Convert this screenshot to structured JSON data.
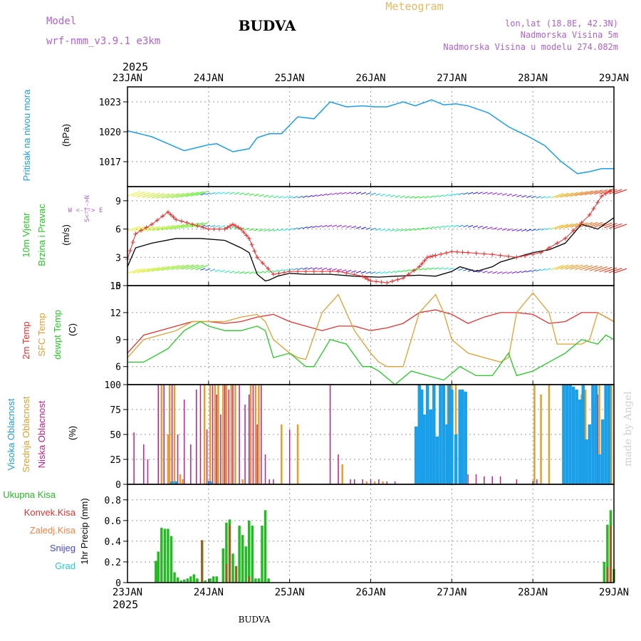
{
  "header": {
    "model_label": "Model",
    "model_name": "wrf-nmm_v3.9.1 e3km",
    "station": "BUDVA",
    "title": "Meteogram",
    "lonlat": "lon,lat (18.8E, 42.3N)",
    "elevation": "Nadmorska Visina 5m",
    "model_elevation": "Nadmorska Visina u modelu 274.082m",
    "year": "2025",
    "footer_station": "BUDVA",
    "credit": "made by Angel"
  },
  "colors": {
    "pressure": "#1aa0e8",
    "wind_speed": "#000000",
    "gust": "#e83030",
    "temp2m": "#e83030",
    "sfc_temp": "#e0a030",
    "dewpt": "#22cc22",
    "high_cloud": "#1aa0e8",
    "mid_cloud": "#e0a030",
    "low_cloud": "#c0208c",
    "total_precip": "#22bb22",
    "conv_precip": "#e83030",
    "frz_precip": "#ff8040",
    "snow": "#4444dd",
    "hail": "#22cccc",
    "model_label": "#b060d0",
    "title": "#e8b860"
  },
  "time_axis": {
    "labels": [
      "23JAN",
      "24JAN",
      "25JAN",
      "26JAN",
      "27JAN",
      "28JAN",
      "29JAN"
    ]
  },
  "chart_data": [
    {
      "type": "line",
      "name": "pressure",
      "ylabel_main": "Pritisak na nivou mora",
      "ylabel_unit": "(hPa)",
      "ylim": [
        1014.5,
        1024.5
      ],
      "yticks": [
        1017,
        1020,
        1023
      ],
      "x": [
        0,
        0.1,
        0.2,
        0.3,
        0.5,
        0.7,
        0.9,
        1.0,
        1.1,
        1.3,
        1.5,
        1.6,
        1.75,
        1.9,
        2.1,
        2.3,
        2.5,
        2.7,
        2.9,
        3.05,
        3.2,
        3.4,
        3.55,
        3.75,
        3.9,
        4.05,
        4.2,
        4.45,
        4.7,
        4.85,
        4.95,
        5.15,
        5.35,
        5.55,
        5.7,
        5.85,
        6.0
      ],
      "values": [
        1020.1,
        1019.9,
        1019.7,
        1019.5,
        1018.8,
        1018.1,
        1018.5,
        1018.7,
        1018.8,
        1018.0,
        1018.3,
        1019.4,
        1019.8,
        1019.8,
        1021.5,
        1021.3,
        1023.0,
        1022.5,
        1022.6,
        1022.5,
        1022.5,
        1023.0,
        1022.6,
        1023.2,
        1022.7,
        1022.8,
        1022.6,
        1021.9,
        1020.5,
        1019.9,
        1019.5,
        1018.6,
        1017.0,
        1015.8,
        1016.0,
        1016.3,
        1016.3
      ]
    },
    {
      "type": "line",
      "name": "wind",
      "ylabel_main": "10m Vjetar",
      "ylabel_sub": "Brzina i Pravac",
      "ylabel_unit": "(m/s)",
      "compass": "W <-|-> E",
      "compass_ns": "S<-|->N",
      "ylim": [
        0,
        10.5
      ],
      "yticks": [
        0,
        3,
        6,
        9
      ],
      "series": [
        {
          "name": "10m wind speed",
          "x": [
            0,
            0.1,
            0.3,
            0.6,
            0.9,
            1.2,
            1.4,
            1.5,
            1.6,
            1.7,
            1.75,
            1.85,
            2.0,
            2.2,
            2.5,
            2.8,
            3.1,
            3.3,
            3.6,
            3.8,
            4.0,
            4.1,
            4.3,
            4.5,
            4.6,
            4.8,
            5.0,
            5.2,
            5.4,
            5.6,
            5.8,
            6.0
          ],
          "values": [
            2.0,
            4.0,
            4.5,
            5.0,
            5.0,
            4.8,
            4.0,
            3.5,
            1.2,
            0.5,
            0.6,
            1.0,
            1.3,
            1.2,
            1.2,
            1.0,
            0.9,
            1.0,
            1.1,
            1.0,
            1.5,
            2.0,
            1.5,
            2.0,
            2.5,
            3.0,
            3.5,
            3.8,
            4.5,
            6.5,
            6.0,
            7.2
          ]
        },
        {
          "name": "gust",
          "x": [
            0,
            0.1,
            0.3,
            0.5,
            0.6,
            0.8,
            1.0,
            1.2,
            1.3,
            1.4,
            1.5,
            1.6,
            1.8,
            2.0,
            2.3,
            2.6,
            2.9,
            3.0,
            3.2,
            3.4,
            3.6,
            3.7,
            3.8,
            4.0,
            4.2,
            4.5,
            4.8,
            5.1,
            5.4,
            5.7,
            5.85,
            6.0
          ],
          "values": [
            2.8,
            5.5,
            6.5,
            7.8,
            7.0,
            6.5,
            6.0,
            6.0,
            6.5,
            6.0,
            5.0,
            3.0,
            1.2,
            1.5,
            1.5,
            1.5,
            1.0,
            0.5,
            0.3,
            0.8,
            2.0,
            3.0,
            3.2,
            3.6,
            3.5,
            3.3,
            3.0,
            3.5,
            5.0,
            7.5,
            9.5,
            10.3
          ]
        }
      ]
    },
    {
      "type": "line",
      "name": "temperature",
      "ylabel_main": "2m Temp",
      "ylabel_sub": "SFC Temp",
      "ylabel_sub2": "dewpt Temp",
      "ylabel_unit": "(C)",
      "ylim": [
        4,
        15
      ],
      "yticks": [
        6,
        9,
        12,
        15
      ],
      "series": [
        {
          "name": "2m Temp",
          "x": [
            0,
            0.2,
            0.4,
            0.6,
            0.8,
            1.0,
            1.2,
            1.4,
            1.6,
            1.8,
            2.0,
            2.2,
            2.4,
            2.6,
            2.8,
            3.0,
            3.2,
            3.4,
            3.6,
            3.8,
            4.0,
            4.2,
            4.4,
            4.6,
            4.8,
            5.0,
            5.2,
            5.4,
            5.6,
            5.8,
            6.0
          ],
          "values": [
            7.5,
            9.5,
            10.0,
            10.5,
            11.0,
            11.0,
            10.8,
            11.0,
            11.5,
            11.8,
            11.0,
            10.5,
            10.0,
            10.5,
            10.5,
            10.0,
            10.3,
            10.8,
            12.0,
            12.3,
            11.8,
            10.8,
            11.5,
            12.0,
            12.0,
            11.8,
            10.8,
            11.0,
            12.0,
            12.0,
            11.0
          ]
        },
        {
          "name": "SFC Temp",
          "x": [
            0,
            0.2,
            0.4,
            0.6,
            0.8,
            1.0,
            1.2,
            1.4,
            1.6,
            1.7,
            1.8,
            2.0,
            2.1,
            2.2,
            2.4,
            2.6,
            2.8,
            3.0,
            3.1,
            3.2,
            3.4,
            3.6,
            3.8,
            3.9,
            4.0,
            4.2,
            4.4,
            4.6,
            4.7,
            4.8,
            5.0,
            5.2,
            5.3,
            5.4,
            5.6,
            5.7,
            5.8,
            6.0
          ],
          "values": [
            7.0,
            9.0,
            9.5,
            10.0,
            11.0,
            11.0,
            11.0,
            11.5,
            11.8,
            11.0,
            9.0,
            7.5,
            7.0,
            6.8,
            12.0,
            14.0,
            10.0,
            7.5,
            6.5,
            6.0,
            6.0,
            12.0,
            14.0,
            12.0,
            9.0,
            7.5,
            7.0,
            6.5,
            7.0,
            12.0,
            14.2,
            12.0,
            8.5,
            8.5,
            8.5,
            9.0,
            12.0,
            11.0
          ]
        },
        {
          "name": "dewpt Temp",
          "x": [
            0,
            0.2,
            0.3,
            0.5,
            0.7,
            0.9,
            1.0,
            1.2,
            1.4,
            1.6,
            1.7,
            1.8,
            2.0,
            2.2,
            2.3,
            2.5,
            2.7,
            2.9,
            3.0,
            3.1,
            3.3,
            3.5,
            3.7,
            3.9,
            4.1,
            4.3,
            4.5,
            4.7,
            4.8,
            5.0,
            5.2,
            5.4,
            5.6,
            5.8,
            5.9,
            6.0
          ],
          "values": [
            6.5,
            6.5,
            7.0,
            8.0,
            10.0,
            11.0,
            10.5,
            10.0,
            10.0,
            10.5,
            10.0,
            7.0,
            7.5,
            6.0,
            6.0,
            9.0,
            8.5,
            6.0,
            6.0,
            5.5,
            4.0,
            5.5,
            5.0,
            4.5,
            6.0,
            5.0,
            5.0,
            7.5,
            5.0,
            5.5,
            6.5,
            7.5,
            9.0,
            8.5,
            9.5,
            9.0
          ]
        }
      ]
    },
    {
      "type": "bar",
      "name": "cloud",
      "ylabel_main": "Visoka Oblacnost",
      "ylabel_sub": "Srednja Oblacnost",
      "ylabel_sub2": "Niska Oblacnost",
      "ylabel_unit": "(%)",
      "ylim": [
        0,
        100
      ],
      "yticks": [
        0,
        25,
        50,
        75,
        100
      ],
      "series": [
        {
          "name": "Niska Oblacnost",
          "x": [
            0.08,
            0.2,
            0.25,
            0.38,
            0.45,
            0.55,
            0.62,
            0.7,
            0.78,
            0.85,
            0.9,
            0.98,
            1.05,
            1.1,
            1.15,
            1.2,
            1.25,
            1.3,
            1.38,
            1.45,
            1.5,
            1.55,
            1.6,
            1.65,
            1.7,
            1.75,
            1.8,
            2.0,
            2.1,
            2.5,
            2.6,
            2.75,
            2.8,
            2.9,
            3.0,
            3.1,
            3.2,
            3.3,
            4.1,
            4.2,
            4.3,
            4.4,
            4.5,
            4.6,
            4.8,
            5.05,
            5.1,
            5.2,
            5.6,
            5.7,
            5.8,
            5.9,
            6.0
          ],
          "values": [
            52,
            40,
            25,
            100,
            100,
            100,
            50,
            85,
            40,
            95,
            100,
            55,
            100,
            90,
            70,
            100,
            95,
            100,
            100,
            80,
            90,
            100,
            60,
            100,
            30,
            5,
            5,
            55,
            5,
            100,
            30,
            5,
            5,
            5,
            5,
            5,
            3,
            3,
            10,
            10,
            10,
            8,
            8,
            8,
            5,
            5,
            5,
            5,
            5,
            20,
            90,
            100,
            100
          ]
        },
        {
          "name": "Srednja Oblacnost",
          "x": [
            0.42,
            0.5,
            0.52,
            0.58,
            0.65,
            0.68,
            0.95,
            1.02,
            1.08,
            1.12,
            1.18,
            1.22,
            1.28,
            1.33,
            1.42,
            1.52,
            1.58,
            1.62,
            1.9,
            2.1,
            2.65,
            2.95,
            3.05,
            3.15,
            3.95,
            4.0,
            4.05,
            5.02,
            5.1,
            5.2,
            5.6,
            5.65,
            5.75,
            5.82,
            5.9,
            5.97
          ],
          "values": [
            100,
            50,
            100,
            100,
            10,
            5,
            100,
            100,
            100,
            100,
            100,
            100,
            100,
            100,
            5,
            100,
            100,
            100,
            60,
            60,
            20,
            3,
            3,
            3,
            100,
            100,
            100,
            100,
            90,
            100,
            90,
            95,
            80,
            100,
            100,
            100
          ]
        },
        {
          "name": "Visoka Oblacnost",
          "x": [
            0.55,
            0.6,
            1.02,
            3.56,
            3.6,
            3.63,
            3.66,
            3.7,
            3.74,
            3.78,
            3.82,
            3.86,
            3.9,
            3.94,
            3.97,
            4.0,
            4.05,
            4.1,
            4.13,
            4.17,
            5.38,
            5.42,
            5.46,
            5.5,
            5.54,
            5.58,
            5.62,
            5.66,
            5.7,
            5.74,
            5.78,
            5.82,
            5.86,
            5.9,
            5.94
          ],
          "values": [
            3,
            3,
            3,
            58,
            100,
            95,
            70,
            100,
            75,
            100,
            48,
            100,
            100,
            60,
            100,
            95,
            50,
            95,
            95,
            93,
            100,
            100,
            100,
            98,
            95,
            85,
            100,
            45,
            60,
            100,
            100,
            30,
            65,
            100,
            100
          ]
        }
      ]
    },
    {
      "type": "bar",
      "name": "precipitation",
      "ylabel_unit": "1hr Precip (mm)",
      "legend": [
        "Ukupna Kisa",
        "Konvek.Kisa",
        "Zaledj.Kisa",
        "Snijeg",
        "Grad"
      ],
      "ylim": [
        0,
        0.95
      ],
      "yticks": [
        0,
        0.2,
        0.4,
        0.6,
        0.8
      ],
      "series": [
        {
          "name": "Ukupna Kisa",
          "x": [
            0.35,
            0.38,
            0.42,
            0.46,
            0.5,
            0.54,
            0.58,
            0.62,
            0.66,
            0.7,
            0.74,
            0.78,
            0.82,
            0.86,
            0.92,
            0.96,
            1.02,
            1.06,
            1.1,
            1.18,
            1.22,
            1.26,
            1.3,
            1.34,
            1.38,
            1.42,
            1.46,
            1.5,
            1.54,
            1.58,
            1.62,
            1.66,
            1.7,
            1.74,
            5.88,
            5.92,
            5.96,
            6.0
          ],
          "values": [
            0.21,
            0.3,
            0.53,
            0.52,
            0.52,
            0.45,
            0.1,
            0.05,
            0.02,
            0.03,
            0.04,
            0.06,
            0.08,
            0.04,
            0.41,
            0.02,
            0.04,
            0.06,
            0.06,
            0.33,
            0.58,
            0.61,
            0.28,
            0.16,
            0.55,
            0.46,
            0.35,
            0.6,
            0.55,
            0.04,
            0.04,
            0.55,
            0.7,
            0.04,
            0.2,
            0.56,
            0.7,
            0.13
          ]
        },
        {
          "name": "Konvek.Kisa",
          "x": [
            0.92,
            1.22,
            1.26,
            1.34,
            1.5,
            5.92,
            5.96,
            6.0
          ],
          "values": [
            0.41,
            0.18,
            0.56,
            0.16,
            0.06,
            0.15,
            0.55,
            0.12
          ]
        }
      ]
    }
  ]
}
